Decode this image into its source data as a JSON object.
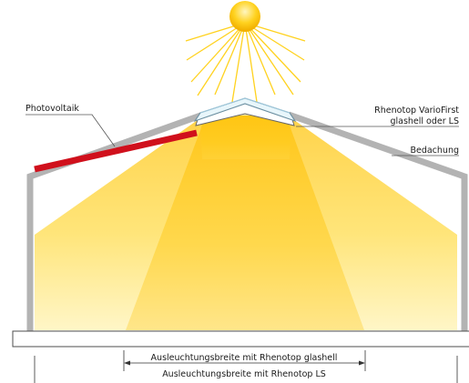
{
  "labels": {
    "photovoltaik": "Photovoltaik",
    "rhenotop_line1": "Rhenotop VarioFirst",
    "rhenotop_line2": "glashell oder LS",
    "bedachung": "Bedachung"
  },
  "dimensions": {
    "glashell": "Ausleuchtungsbreite mit Rhenotop glashell",
    "ls": "Ausleuchtungsbreite mit Rhenotop LS"
  },
  "colors": {
    "photovoltaic_panel": "#d0101c",
    "structure": "#b3b3b3",
    "sun": "#ffcc00",
    "light_core": "#ffcc00",
    "light_outer": "#ffe680"
  },
  "icons": {
    "sun": "sun-icon"
  }
}
